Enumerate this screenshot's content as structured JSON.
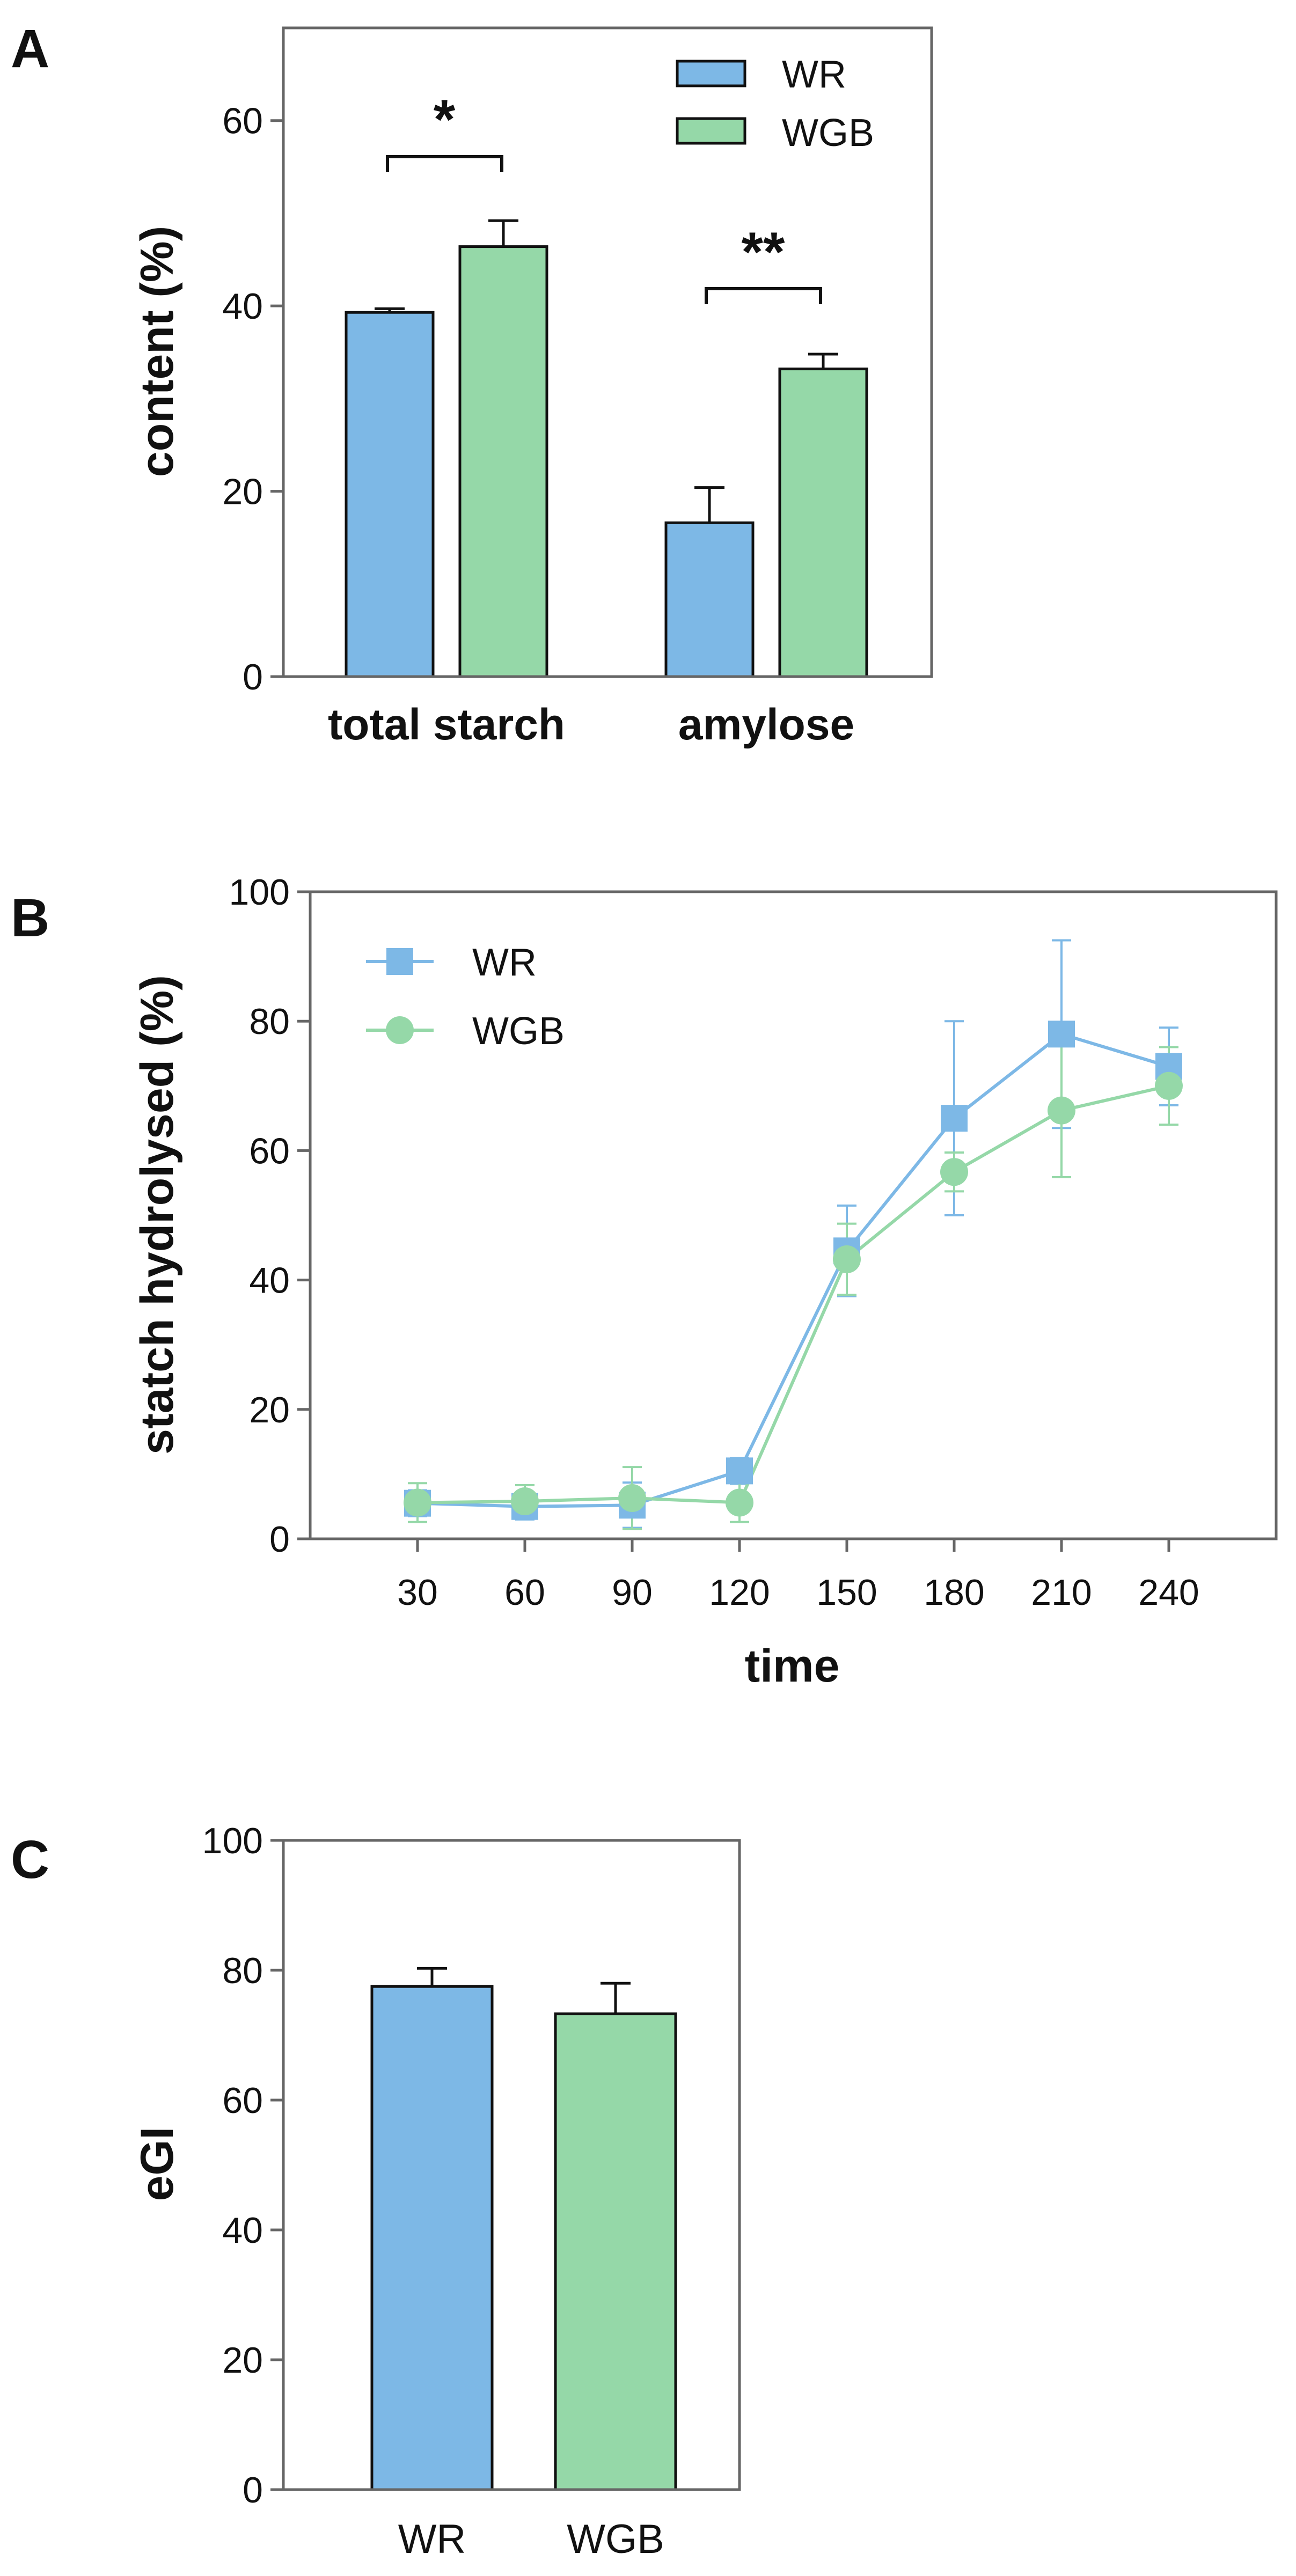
{
  "colors": {
    "WR": "#7db8e6",
    "WGB": "#95d8a8",
    "axis": "#666666"
  },
  "chart_data": [
    {
      "panel": "A",
      "type": "bar",
      "ylabel": "content (%)",
      "ylim": [
        0,
        70
      ],
      "yticks": [
        0,
        20,
        40,
        60
      ],
      "categories": [
        "total starch",
        "amylose"
      ],
      "series": [
        {
          "name": "WR",
          "values": [
            39.3,
            16.6
          ],
          "errors": [
            0.4,
            3.8
          ]
        },
        {
          "name": "WGB",
          "values": [
            46.4,
            33.2
          ],
          "errors": [
            2.8,
            1.6
          ]
        }
      ],
      "significance": [
        "*",
        "**"
      ],
      "legend": [
        "WR",
        "WGB"
      ]
    },
    {
      "panel": "B",
      "type": "line",
      "xlabel": "time",
      "ylabel": "statch hydrolysed (%)",
      "x": [
        30,
        60,
        90,
        120,
        150,
        180,
        210,
        240
      ],
      "xlim": [
        0,
        270
      ],
      "ylim": [
        0,
        100
      ],
      "yticks": [
        0,
        20,
        40,
        60,
        80,
        100
      ],
      "series": [
        {
          "name": "WR",
          "marker": "square",
          "values": [
            5.5,
            5.0,
            5.2,
            10.5,
            44.5,
            65.0,
            78.0,
            73.0
          ],
          "errors": [
            2.0,
            2.0,
            3.5,
            2.0,
            7.0,
            15.0,
            14.5,
            6.0
          ]
        },
        {
          "name": "WGB",
          "marker": "circle",
          "values": [
            5.6,
            5.8,
            6.3,
            5.6,
            43.2,
            56.7,
            66.2,
            70.0
          ],
          "errors": [
            3.0,
            2.5,
            4.8,
            3.0,
            5.5,
            3.0,
            10.3,
            6.0
          ]
        }
      ],
      "legend": [
        "WR",
        "WGB"
      ]
    },
    {
      "panel": "C",
      "type": "bar",
      "ylabel": "eGI",
      "ylim": [
        0,
        100
      ],
      "yticks": [
        0,
        20,
        40,
        60,
        80,
        100
      ],
      "categories": [
        "WR",
        "WGB"
      ],
      "values": [
        77.5,
        73.3
      ],
      "errors": [
        2.8,
        4.7
      ]
    }
  ]
}
